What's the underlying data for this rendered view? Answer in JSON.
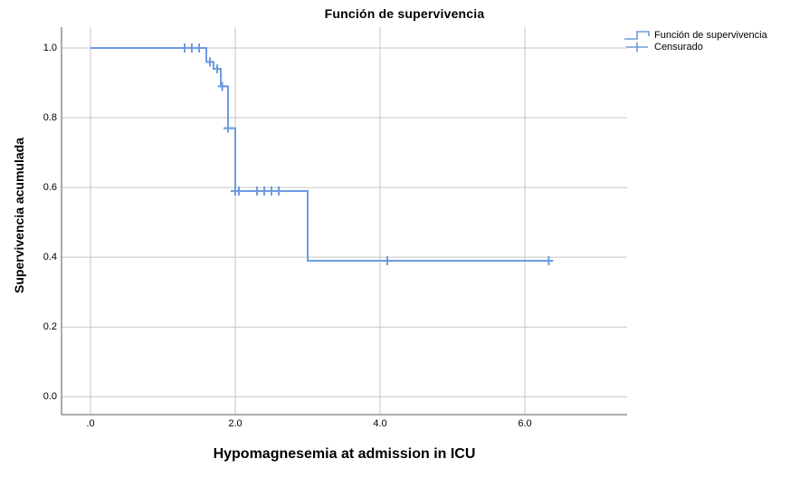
{
  "chart_data": {
    "type": "line",
    "chart_style": "kaplan-meier-survival-step",
    "title": "Función de supervivencia",
    "xlabel": "Hypomagnesemia at admission in ICU",
    "ylabel": "Supervivencia acumulada",
    "xticks": [
      0,
      2,
      4,
      6
    ],
    "xtick_labels": [
      ".0",
      "2.0",
      "4.0",
      "6.0"
    ],
    "yticks": [
      1.0,
      0.8,
      0.6,
      0.4,
      0.2,
      0.0
    ],
    "ytick_labels": [
      "1.0",
      "0.8",
      "0.6",
      "0.4",
      "0.2",
      "0.0"
    ],
    "xlim": [
      -0.4,
      7.4
    ],
    "ylim": [
      -0.05,
      1.06
    ],
    "grid": true,
    "legend": {
      "position": "top-right",
      "entries": [
        {
          "label": "Función de supervivencia",
          "marker": "step-line"
        },
        {
          "label": "Censurado",
          "marker": "plus"
        }
      ]
    },
    "colors": {
      "curve": "#6E9BE0",
      "grid": "#c6c6c6",
      "axis": "#595959",
      "text": "#000000"
    },
    "survival_function": {
      "name": "Función de supervivencia",
      "start": [
        0,
        1.0
      ],
      "drops": [
        {
          "x": 1.6,
          "to": 0.96
        },
        {
          "x": 1.7,
          "to": 0.94
        },
        {
          "x": 1.8,
          "to": 0.89
        },
        {
          "x": 1.9,
          "to": 0.77
        },
        {
          "x": 2.0,
          "to": 0.59
        },
        {
          "x": 3.0,
          "to": 0.39
        }
      ],
      "end_x": 6.35
    },
    "censored": {
      "name": "Censurado",
      "points": [
        [
          1.3,
          1.0
        ],
        [
          1.4,
          1.0
        ],
        [
          1.5,
          1.0
        ],
        [
          1.65,
          0.96
        ],
        [
          1.75,
          0.94
        ],
        [
          1.82,
          0.89
        ],
        [
          1.9,
          0.77
        ],
        [
          2.0,
          0.59
        ],
        [
          2.05,
          0.59
        ],
        [
          2.3,
          0.59
        ],
        [
          2.4,
          0.59
        ],
        [
          2.5,
          0.59
        ],
        [
          2.6,
          0.59
        ],
        [
          4.1,
          0.39
        ],
        [
          6.33,
          0.39
        ]
      ]
    }
  }
}
